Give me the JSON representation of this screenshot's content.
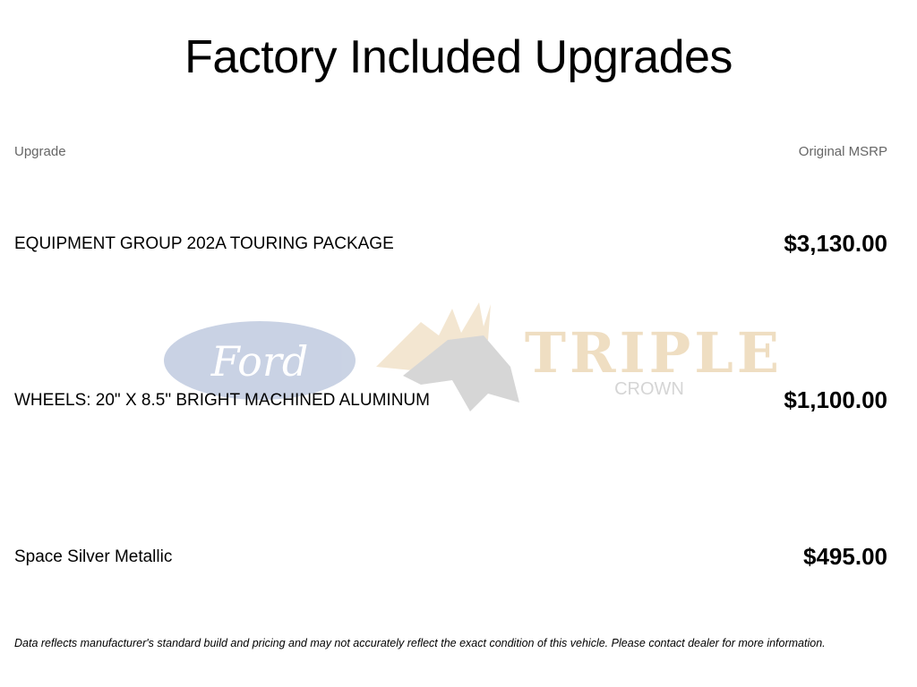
{
  "title": "Factory Included Upgrades",
  "table": {
    "headers": {
      "upgrade": "Upgrade",
      "msrp": "Original MSRP"
    },
    "rows": [
      {
        "name": "EQUIPMENT GROUP 202A TOURING PACKAGE",
        "price": "$3,130.00"
      },
      {
        "name": "WHEELS: 20\" X 8.5\" BRIGHT MACHINED ALUMINUM",
        "price": "$1,100.00"
      },
      {
        "name": "Space Silver Metallic",
        "price": "$495.00"
      }
    ]
  },
  "watermark": {
    "brand": "Ford",
    "dealer_line1": "TRIPLE",
    "dealer_line2": "CROWN"
  },
  "disclaimer": "Data reflects manufacturer's standard build and pricing and may not accurately reflect the exact condition of this vehicle. Please contact dealer for more information."
}
